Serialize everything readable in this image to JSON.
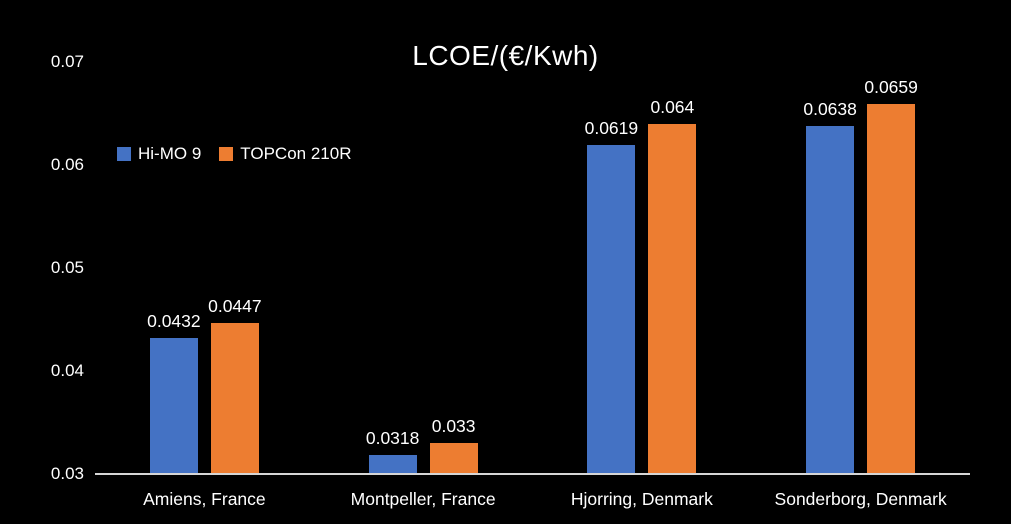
{
  "chart_data": {
    "type": "bar",
    "title": "LCOE/(€/Kwh)",
    "categories": [
      "Amiens, France",
      "Montpeller, France",
      "Hjorring, Denmark",
      "Sonderborg, Denmark"
    ],
    "series": [
      {
        "name": "Hi-MO 9",
        "color": "#4472C4",
        "values": [
          0.0432,
          0.0318,
          0.0619,
          0.0638
        ],
        "labels": [
          "0.0432",
          "0.0318",
          "0.0619",
          "0.0638"
        ]
      },
      {
        "name": "TOPCon 210R",
        "color": "#ED7D31",
        "values": [
          0.0447,
          0.033,
          0.064,
          0.0659
        ],
        "labels": [
          "0.0447",
          "0.033",
          "0.064",
          "0.0659"
        ]
      }
    ],
    "ylim": [
      0.03,
      0.07
    ],
    "yticks": [
      "0.03",
      "0.04",
      "0.05",
      "0.06",
      "0.07"
    ],
    "grid": false,
    "legend_position": "inside-upper-left",
    "colors": {
      "background": "#000000",
      "text": "#FFFFFF",
      "axis_line": "#D6D6D6"
    }
  }
}
